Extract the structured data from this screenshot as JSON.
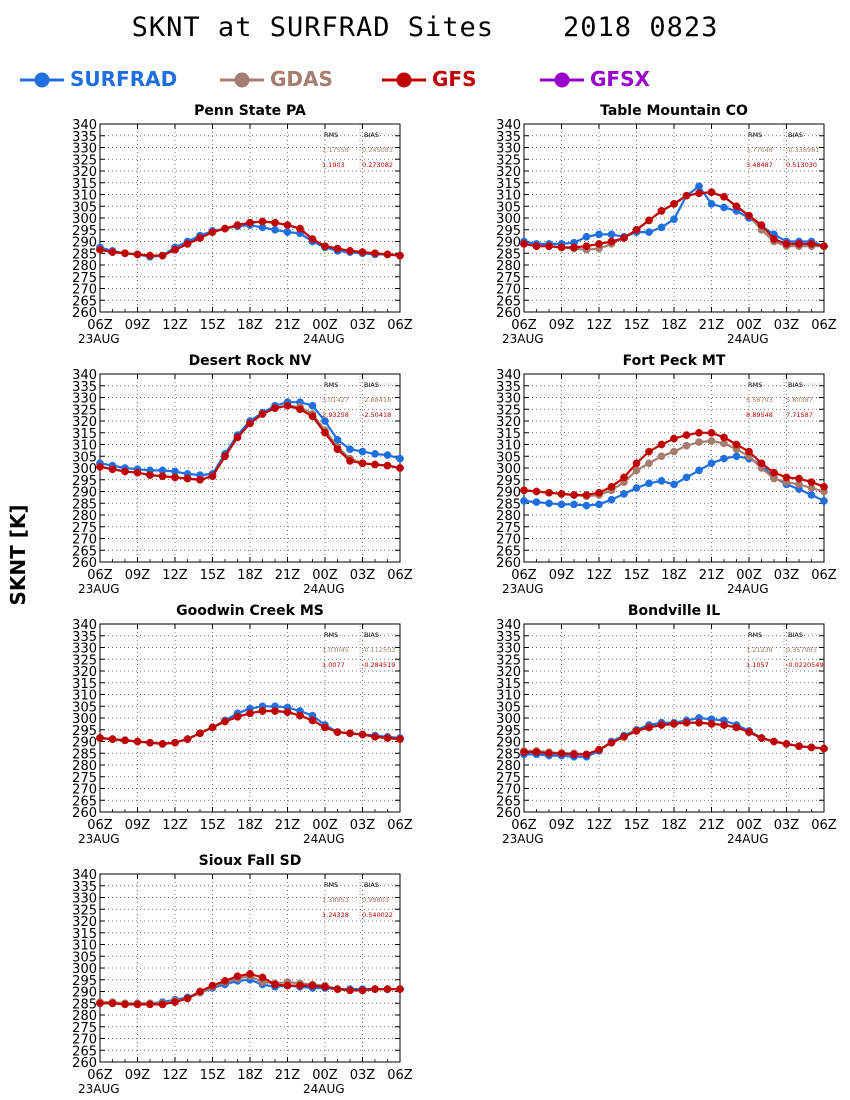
{
  "title": "SKNT at SURFRAD Sites    2018 0823",
  "ylabel": "SKNT [K]",
  "legend": [
    {
      "name": "SURFRAD",
      "color": "#1f6fe0"
    },
    {
      "name": "GDAS",
      "color": "#a67c6e"
    },
    {
      "name": "GFS",
      "color": "#c00000"
    },
    {
      "name": "GFSX",
      "color": "#9900cc"
    }
  ],
  "chart_data": [
    {
      "type": "line",
      "title": "Penn State PA",
      "x_ticks": [
        "06Z",
        "09Z",
        "12Z",
        "15Z",
        "18Z",
        "21Z",
        "00Z",
        "03Z",
        "06Z"
      ],
      "date_labels": [
        "23AUG",
        "24AUG"
      ],
      "yticks": [
        260,
        265,
        270,
        275,
        280,
        285,
        290,
        295,
        300,
        305,
        310,
        315,
        320,
        325,
        330,
        335,
        340
      ],
      "ylim": [
        260,
        340
      ],
      "grid": true,
      "stats": {
        "header": [
          "RMS",
          "BIAS"
        ],
        "rows": [
          {
            "model": "GDAS",
            "rms": "1.17558",
            "bias": "0.245081"
          },
          {
            "model": "GFS",
            "rms": "1.1903",
            "bias": "0.273082"
          }
        ]
      },
      "series": [
        {
          "name": "SURFRAD",
          "values": [
            287.5,
            286,
            285,
            284.5,
            283.5,
            284,
            287.5,
            290,
            292.5,
            294.5,
            295.5,
            296.5,
            297,
            296,
            295,
            294,
            293.5,
            290,
            287.5,
            286,
            285.5,
            285,
            284.5,
            284.5,
            284
          ]
        },
        {
          "name": "GDAS",
          "values": [
            286.5,
            285.5,
            285,
            284.5,
            284,
            284,
            286.5,
            289,
            291.5,
            294,
            295.5,
            297,
            298,
            298.5,
            298,
            297,
            295.5,
            291,
            288,
            287,
            286,
            285.5,
            285,
            284.5,
            284
          ]
        },
        {
          "name": "GFS",
          "values": [
            286.5,
            285.5,
            285,
            284.5,
            284,
            284,
            286.5,
            289,
            291.5,
            294,
            295.5,
            297,
            298,
            298.5,
            298,
            297,
            295.5,
            291,
            288,
            287,
            286,
            285.5,
            285,
            284.5,
            284
          ]
        }
      ]
    },
    {
      "type": "line",
      "title": "Table Mountain CO",
      "x_ticks": [
        "06Z",
        "09Z",
        "12Z",
        "15Z",
        "18Z",
        "21Z",
        "00Z",
        "03Z",
        "06Z"
      ],
      "date_labels": [
        "23AUG",
        "24AUG"
      ],
      "yticks": [
        260,
        265,
        270,
        275,
        280,
        285,
        290,
        295,
        300,
        305,
        310,
        315,
        320,
        325,
        330,
        335,
        340
      ],
      "ylim": [
        260,
        340
      ],
      "grid": true,
      "stats": {
        "header": [
          "RMS",
          "BIAS"
        ],
        "rows": [
          {
            "model": "GDAS",
            "rms": "3.77048",
            "bias": "-0.338981"
          },
          {
            "model": "GFS",
            "rms": "3.48487",
            "bias": "0.513030"
          }
        ]
      },
      "series": [
        {
          "name": "SURFRAD",
          "values": [
            290,
            289,
            289,
            289,
            289.5,
            292,
            293,
            293,
            292,
            294,
            294,
            296,
            299.5,
            309.5,
            313.5,
            306,
            304.5,
            303,
            300,
            296.5,
            293,
            290,
            290,
            290,
            288
          ]
        },
        {
          "name": "GDAS",
          "values": [
            289,
            288,
            288,
            287.5,
            287,
            286.5,
            287,
            289,
            291.5,
            295,
            299,
            303,
            306,
            309.5,
            310.5,
            311,
            309,
            305,
            301,
            295,
            290,
            288,
            288,
            288,
            288
          ]
        },
        {
          "name": "GFS",
          "values": [
            289,
            288,
            288,
            287.5,
            287.5,
            288,
            289,
            290,
            291.5,
            295,
            299,
            303,
            306,
            309.5,
            310.5,
            311,
            309,
            305,
            301,
            297,
            291,
            289,
            289,
            289,
            288
          ]
        }
      ]
    },
    {
      "type": "line",
      "title": "Desert Rock NV",
      "x_ticks": [
        "06Z",
        "09Z",
        "12Z",
        "15Z",
        "18Z",
        "21Z",
        "00Z",
        "03Z",
        "06Z"
      ],
      "date_labels": [
        "23AUG",
        "24AUG"
      ],
      "yticks": [
        260,
        265,
        270,
        275,
        280,
        285,
        290,
        295,
        300,
        305,
        310,
        315,
        320,
        325,
        330,
        335,
        340
      ],
      "ylim": [
        260,
        340
      ],
      "grid": true,
      "stats": {
        "header": [
          "RMS",
          "BIAS"
        ],
        "rows": [
          {
            "model": "GDAS",
            "rms": "3.01427",
            "bias": "-2.88418"
          },
          {
            "model": "GFS",
            "rms": "2.93258",
            "bias": "-2.50418"
          }
        ]
      },
      "series": [
        {
          "name": "SURFRAD",
          "values": [
            302,
            301,
            300,
            299.5,
            299,
            299,
            298.5,
            297.5,
            297,
            297.5,
            306,
            314,
            320,
            323.5,
            326.5,
            328,
            328,
            326.5,
            320,
            312,
            308,
            307,
            306,
            305.5,
            304
          ]
        },
        {
          "name": "GDAS",
          "values": [
            300.5,
            299.5,
            298.5,
            298,
            297,
            296.5,
            296,
            295.5,
            295,
            296.5,
            305,
            313,
            319,
            323,
            325.5,
            326.5,
            326,
            323,
            316,
            309,
            304,
            302,
            301.5,
            301,
            300
          ]
        },
        {
          "name": "GFS",
          "values": [
            300.5,
            299.5,
            298.5,
            298,
            297,
            296.5,
            296,
            295.5,
            295,
            296.5,
            305,
            313,
            319,
            323,
            325.5,
            326.5,
            325,
            322,
            315,
            308,
            303,
            302,
            301.5,
            301,
            300
          ]
        }
      ]
    },
    {
      "type": "line",
      "title": "Fort Peck MT",
      "x_ticks": [
        "06Z",
        "09Z",
        "12Z",
        "15Z",
        "18Z",
        "21Z",
        "00Z",
        "03Z",
        "06Z"
      ],
      "date_labels": [
        "23AUG",
        "24AUG"
      ],
      "yticks": [
        260,
        265,
        270,
        275,
        280,
        285,
        290,
        295,
        300,
        305,
        310,
        315,
        320,
        325,
        330,
        335,
        340
      ],
      "ylim": [
        260,
        340
      ],
      "grid": true,
      "stats": {
        "header": [
          "RMS",
          "BIAS"
        ],
        "rows": [
          {
            "model": "GDAS",
            "rms": "6.58793",
            "bias": "5.80387"
          },
          {
            "model": "GFS",
            "rms": "8.89548",
            "bias": "7.71587"
          }
        ]
      },
      "series": [
        {
          "name": "SURFRAD",
          "values": [
            286,
            285.5,
            285,
            284.5,
            284.5,
            284,
            284.5,
            286.5,
            289,
            291.5,
            293.5,
            294.5,
            293,
            296,
            299,
            302,
            304,
            305,
            304,
            301.5,
            296,
            293,
            291,
            288.5,
            286
          ]
        },
        {
          "name": "GDAS",
          "values": [
            290.5,
            290,
            289.5,
            289,
            288.5,
            288,
            288.5,
            290.5,
            294,
            299,
            302,
            305,
            307,
            309.5,
            311,
            311.5,
            310.5,
            308,
            305,
            300,
            295.5,
            294,
            293,
            291.5,
            290
          ]
        },
        {
          "name": "GFS",
          "values": [
            290.5,
            290,
            289.5,
            289,
            288.5,
            288.5,
            289.5,
            292,
            296,
            302,
            307,
            310,
            312.5,
            314,
            315,
            315,
            313,
            310,
            307,
            302,
            298,
            296,
            295.5,
            294,
            292
          ]
        }
      ]
    },
    {
      "type": "line",
      "title": "Goodwin Creek MS",
      "x_ticks": [
        "06Z",
        "09Z",
        "12Z",
        "15Z",
        "18Z",
        "21Z",
        "00Z",
        "03Z",
        "06Z"
      ],
      "date_labels": [
        "23AUG",
        "24AUG"
      ],
      "yticks": [
        260,
        265,
        270,
        275,
        280,
        285,
        290,
        295,
        300,
        305,
        310,
        315,
        320,
        325,
        330,
        335,
        340
      ],
      "ylim": [
        260,
        340
      ],
      "grid": true,
      "stats": {
        "header": [
          "RMS",
          "BIAS"
        ],
        "rows": [
          {
            "model": "GDAS",
            "rms": "1.03045",
            "bias": "-0.112503"
          },
          {
            "model": "GFS",
            "rms": "1.0077",
            "bias": "-0.284519"
          }
        ]
      },
      "series": [
        {
          "name": "SURFRAD",
          "values": [
            291.5,
            291,
            290.5,
            290,
            289.5,
            289,
            289.5,
            291,
            293.5,
            296,
            299,
            302,
            304,
            305,
            305,
            304.5,
            303,
            301,
            297,
            294,
            293.5,
            293,
            292.5,
            292,
            291.5
          ]
        },
        {
          "name": "GDAS",
          "values": [
            291.5,
            291,
            290.5,
            290,
            289.5,
            289,
            289.5,
            291,
            293.5,
            296,
            298.5,
            300.5,
            302,
            303,
            303,
            302.5,
            301,
            299,
            296,
            294,
            293.5,
            293,
            292,
            291.5,
            291
          ]
        },
        {
          "name": "GFS",
          "values": [
            291.5,
            291,
            290.5,
            290,
            289.5,
            289,
            289.5,
            291,
            293.5,
            296,
            298.5,
            300.5,
            302,
            303,
            303,
            302.5,
            301,
            299,
            296,
            294,
            293.5,
            293,
            292,
            291.5,
            291
          ]
        }
      ]
    },
    {
      "type": "line",
      "title": "Bondville IL",
      "x_ticks": [
        "06Z",
        "09Z",
        "12Z",
        "15Z",
        "18Z",
        "21Z",
        "00Z",
        "03Z",
        "06Z"
      ],
      "date_labels": [
        "23AUG",
        "24AUG"
      ],
      "yticks": [
        260,
        265,
        270,
        275,
        280,
        285,
        290,
        295,
        300,
        305,
        310,
        315,
        320,
        325,
        330,
        335,
        340
      ],
      "ylim": [
        260,
        340
      ],
      "grid": true,
      "stats": {
        "header": [
          "RMS",
          "BIAS"
        ],
        "rows": [
          {
            "model": "GDAS",
            "rms": "1.21238",
            "bias": "0.357983"
          },
          {
            "model": "GFS",
            "rms": "1.1057",
            "bias": "-0.0220549"
          }
        ]
      },
      "series": [
        {
          "name": "SURFRAD",
          "values": [
            284.5,
            284.5,
            284,
            284,
            283.5,
            283.5,
            286,
            290,
            292.5,
            295,
            297,
            298,
            298,
            299,
            300,
            299.5,
            299,
            297,
            294.5,
            291.5,
            290,
            289,
            288,
            287.5,
            287
          ]
        },
        {
          "name": "GDAS",
          "values": [
            286,
            286,
            285.5,
            285,
            285,
            284.5,
            286.5,
            289.5,
            292,
            294.5,
            296,
            297,
            297.5,
            298,
            298,
            297.5,
            297,
            296,
            294,
            291.5,
            290,
            289,
            288,
            287.5,
            287
          ]
        },
        {
          "name": "GFS",
          "values": [
            285.5,
            285.5,
            285,
            285,
            284.5,
            284.5,
            286.5,
            289.5,
            292,
            294.5,
            296,
            297,
            297.5,
            298,
            298,
            297.5,
            297,
            296,
            294,
            291.5,
            290,
            289,
            288,
            287.5,
            287
          ]
        }
      ]
    },
    {
      "type": "line",
      "title": "Sioux Fall SD",
      "x_ticks": [
        "06Z",
        "09Z",
        "12Z",
        "15Z",
        "18Z",
        "21Z",
        "00Z",
        "03Z",
        "06Z"
      ],
      "date_labels": [
        "23AUG",
        "24AUG"
      ],
      "yticks": [
        260,
        265,
        270,
        275,
        280,
        285,
        290,
        295,
        300,
        305,
        310,
        315,
        320,
        325,
        330,
        335,
        340
      ],
      "ylim": [
        260,
        340
      ],
      "grid": true,
      "stats": {
        "header": [
          "RMS",
          "BIAS"
        ],
        "rows": [
          {
            "model": "GDAS",
            "rms": "1.38953",
            "bias": "0.98803"
          },
          {
            "model": "GFS",
            "rms": "1.24328",
            "bias": "0.540022"
          }
        ]
      },
      "series": [
        {
          "name": "SURFRAD",
          "values": [
            285,
            285,
            285,
            285,
            285,
            285.5,
            286.5,
            287.5,
            289.5,
            291.5,
            293,
            294.5,
            295,
            293,
            292,
            292.5,
            292,
            291.5,
            291.5,
            291,
            291,
            291,
            291,
            291,
            291
          ]
        },
        {
          "name": "GDAS",
          "values": [
            285.5,
            285.5,
            285,
            285,
            285,
            285,
            286,
            287,
            289.5,
            292,
            294,
            295.5,
            296.5,
            294,
            293.5,
            294,
            293.5,
            293,
            292.5,
            291,
            290.5,
            290.5,
            291,
            291,
            291
          ]
        },
        {
          "name": "GFS",
          "values": [
            285,
            285,
            284.5,
            284.5,
            284.5,
            284.5,
            285.5,
            287,
            290,
            292.5,
            294.5,
            296.5,
            297.5,
            296,
            293,
            292.5,
            292.5,
            292.5,
            292,
            291,
            290.5,
            290.5,
            291,
            291,
            291
          ]
        }
      ]
    }
  ]
}
